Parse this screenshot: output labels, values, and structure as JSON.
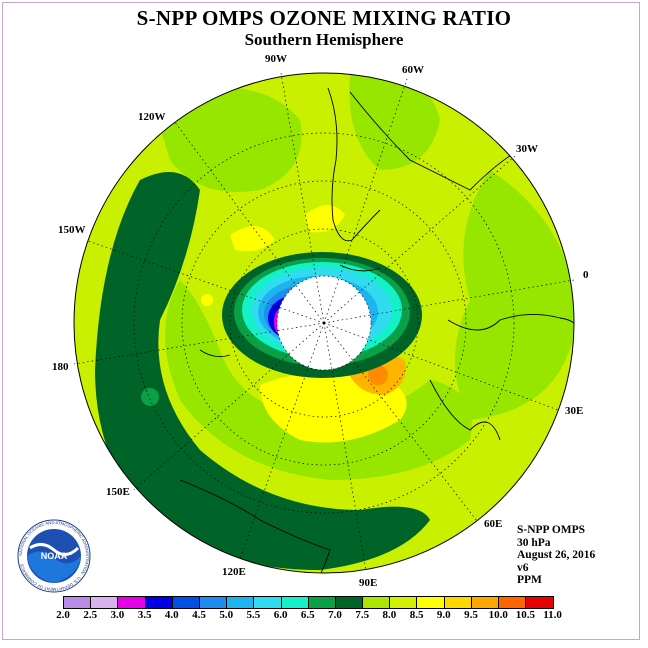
{
  "title": "S-NPP OMPS OZONE MIXING RATIO",
  "subtitle": "Southern Hemisphere",
  "longitude_labels": {
    "lon_90w": "90W",
    "lon_60w": "60W",
    "lon_120w": "120W",
    "lon_30w": "30W",
    "lon_150w": "150W",
    "lon_0": "0",
    "lon_180": "180",
    "lon_30e": "30E",
    "lon_150e": "150E",
    "lon_60e": "60E",
    "lon_120e": "120E",
    "lon_90e": "90E"
  },
  "info": {
    "instrument": "S-NPP OMPS",
    "level": "30 hPa",
    "date": "August 26, 2016",
    "version": "v6",
    "units": "PPM"
  },
  "logo": {
    "text": "NOAA",
    "ring_text": "NATIONAL OCEANIC AND ATMOSPHERIC ADMINISTRATION · U.S. DEPARTMENT OF COMMERCE"
  },
  "colorbar": {
    "ticks": [
      "2.0",
      "2.5",
      "3.0",
      "3.5",
      "4.0",
      "4.5",
      "5.0",
      "5.5",
      "6.0",
      "6.5",
      "7.0",
      "7.5",
      "8.0",
      "8.5",
      "9.0",
      "9.5",
      "10.0",
      "10.5",
      "11.0"
    ],
    "colors": [
      "#b98ae6",
      "#d9b2ee",
      "#e600e6",
      "#0000e6",
      "#0050e6",
      "#1e8cf0",
      "#1eb4f0",
      "#32dcf0",
      "#14f0c8",
      "#0aa046",
      "#006428",
      "#aae600",
      "#d2f000",
      "#ffff00",
      "#ffd700",
      "#ffa500",
      "#ff6400",
      "#e60000",
      "#8b5a3c"
    ]
  },
  "map_colors": {
    "background": "#c8f000",
    "bright_green": "#96e600",
    "dark_green": "#006428",
    "medium_green": "#0aa046",
    "yellow": "#ffff00",
    "orange": "#ffb400",
    "white": "#ffffff"
  }
}
